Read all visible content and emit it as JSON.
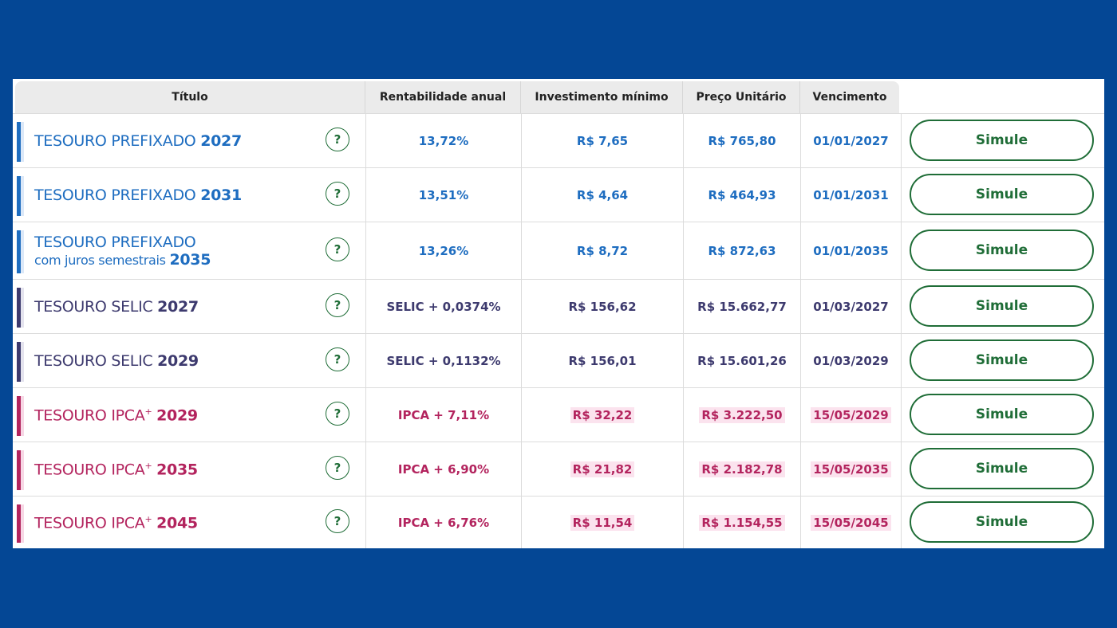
{
  "headers": {
    "titulo": "Título",
    "rentabilidade": "Rentabilidade anual",
    "investimento": "Investimento mínimo",
    "preco": "Preço Unitário",
    "vencimento": "Vencimento"
  },
  "help_symbol": "?",
  "colors": {
    "background": "#044795",
    "prefixado": "#1e6dc0",
    "selic": "#3d3a6e",
    "ipca": "#b3245e",
    "button": "#1f6d37"
  },
  "rows": [
    {
      "name": "TESOURO PREFIXADO",
      "year": "2027",
      "rate": "13,72%",
      "min": "R$ 7,65",
      "price": "R$ 765,80",
      "maturity": "01/01/2027",
      "action": "Simule"
    },
    {
      "name": "TESOURO PREFIXADO",
      "year": "2031",
      "rate": "13,51%",
      "min": "R$ 4,64",
      "price": "R$ 464,93",
      "maturity": "01/01/2031",
      "action": "Simule"
    },
    {
      "name": "TESOURO PREFIXADO",
      "subname": "com juros semestrais",
      "year": "2035",
      "rate": "13,26%",
      "min": "R$ 8,72",
      "price": "R$ 872,63",
      "maturity": "01/01/2035",
      "action": "Simule"
    },
    {
      "name": "TESOURO SELIC",
      "year": "2027",
      "rate": "SELIC + 0,0374%",
      "min": "R$ 156,62",
      "price": "R$ 15.662,77",
      "maturity": "01/03/2027",
      "action": "Simule"
    },
    {
      "name": "TESOURO SELIC",
      "year": "2029",
      "rate": "SELIC + 0,1132%",
      "min": "R$ 156,01",
      "price": "R$ 15.601,26",
      "maturity": "01/03/2029",
      "action": "Simule"
    },
    {
      "name": "TESOURO IPCA",
      "sup": "+",
      "year": "2029",
      "rate": "IPCA + 7,11%",
      "min": "R$ 32,22",
      "price": "R$ 3.222,50",
      "maturity": "15/05/2029",
      "action": "Simule"
    },
    {
      "name": "TESOURO IPCA",
      "sup": "+",
      "year": "2035",
      "rate": "IPCA + 6,90%",
      "min": "R$ 21,82",
      "price": "R$ 2.182,78",
      "maturity": "15/05/2035",
      "action": "Simule"
    },
    {
      "name": "TESOURO IPCA",
      "sup": "+",
      "year": "2045",
      "rate": "IPCA + 6,76%",
      "min": "R$ 11,54",
      "price": "R$ 1.154,55",
      "maturity": "15/05/2045",
      "action": "Simule"
    }
  ]
}
